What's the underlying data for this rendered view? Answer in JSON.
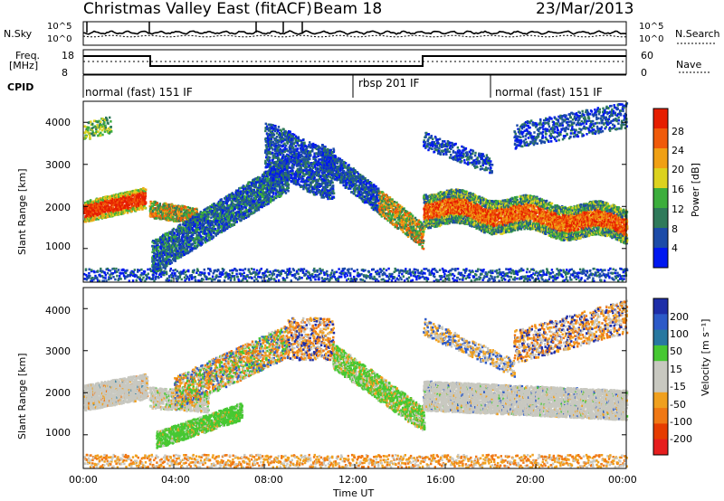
{
  "header": {
    "title": "Christmas Valley East (fitACF)",
    "beam": "Beam 18",
    "date": "23/Mar/2013"
  },
  "nsky_panel": {
    "left_label": "N.Sky",
    "right_label": "N.Search",
    "ticks": [
      "10^5",
      "10^0"
    ],
    "nave_label": "Nave"
  },
  "freq_panel": {
    "left_label_1": "Freq.",
    "left_label_2": "[MHz]",
    "left_ticks": [
      "18",
      "8"
    ],
    "right_ticks": [
      "60",
      "0"
    ]
  },
  "cpid": {
    "label": "CPID",
    "modes": [
      {
        "name": "normal (fast) 151 IF",
        "start_hour": 0
      },
      {
        "name": "rbsp 201 IF",
        "start_hour": 12
      },
      {
        "name": "normal (fast) 151 IF",
        "start_hour": 18
      }
    ]
  },
  "chart_data": [
    {
      "type": "heatmap",
      "name": "Power",
      "ylabel": "Slant Range [km]",
      "ylim": [
        200,
        4500
      ],
      "y_ticks": [
        "4000",
        "3000",
        "2000",
        "1000"
      ],
      "y_tick_values": [
        4000,
        3000,
        2000,
        1000
      ],
      "colorbar": {
        "label": "Power [dB]",
        "ticks": [
          "28",
          "24",
          "20",
          "16",
          "12",
          "8",
          "4"
        ],
        "range": [
          0,
          30
        ],
        "colors": [
          "#0018f0",
          "#1c4ba8",
          "#2f7a5a",
          "#3cae3c",
          "#dcd21e",
          "#f0a014",
          "#f05a0a",
          "#e61e00"
        ]
      }
    },
    {
      "type": "heatmap",
      "name": "Velocity",
      "ylabel": "Slant Range [km]",
      "ylim": [
        200,
        4500
      ],
      "y_ticks": [
        "4000",
        "3000",
        "2000",
        "1000"
      ],
      "y_tick_values": [
        4000,
        3000,
        2000,
        1000
      ],
      "colorbar": {
        "label": "Velocity [m s⁻¹]",
        "ticks": [
          "200",
          "100",
          "50",
          "15",
          "-15",
          "-50",
          "-100",
          "-200"
        ],
        "colors": [
          "#1e2ea8",
          "#2c5ac8",
          "#2878a0",
          "#46c832",
          "#c8c8c0",
          "#c8c8c0",
          "#f0a01e",
          "#f07814",
          "#e63c00",
          "#e61e1e"
        ]
      }
    }
  ],
  "x_axis": {
    "label": "Time UT",
    "ticks": [
      "00:00",
      "04:00",
      "08:00",
      "12:00",
      "16:00",
      "20:00",
      "00:00"
    ],
    "tick_hours": [
      0,
      4,
      8,
      12,
      16,
      20,
      24
    ],
    "xlim": [
      0,
      24
    ]
  }
}
